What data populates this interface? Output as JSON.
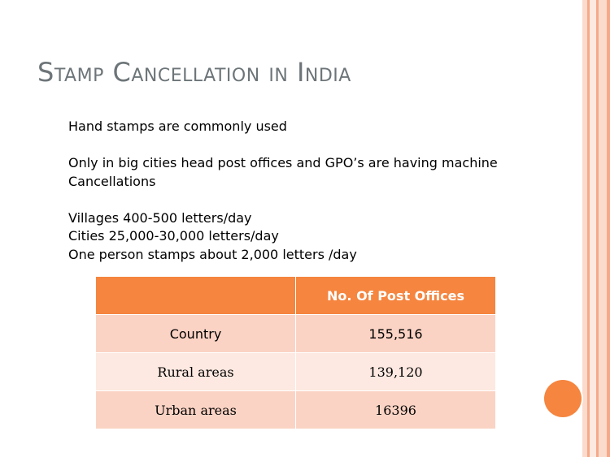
{
  "slide": {
    "title": "Stamp Cancellation in India",
    "body_lines": [
      "Hand stamps are commonly used",
      "",
      "Only in big cities head post offices and GPO’s are having machine",
      "Cancellations",
      "",
      "Villages 400-500 letters/day",
      "Cities 25,000-30,000 letters/day",
      "One person stamps about 2,000 letters /day"
    ]
  },
  "table": {
    "header": [
      "",
      "No. Of  Post Offices"
    ],
    "rows": [
      {
        "label": "Country",
        "value": "155,516"
      },
      {
        "label": "Rural areas",
        "value": "139,120"
      },
      {
        "label": "Urban areas",
        "value": "16396"
      }
    ]
  },
  "colors": {
    "accent": "#f5853f",
    "row_dark": "#fbd3c4",
    "row_light": "#fde9e1",
    "title": "#6d7579"
  }
}
